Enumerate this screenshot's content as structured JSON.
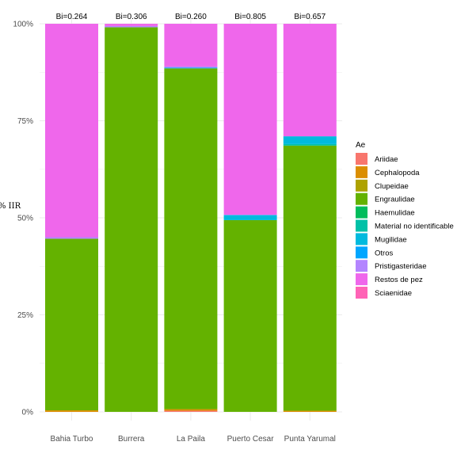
{
  "chart_data": {
    "type": "bar",
    "stacked": true,
    "ylabel": "% IIR",
    "xlabel": "",
    "ylim": [
      0,
      100
    ],
    "y_ticks": [
      "0%",
      "25%",
      "50%",
      "75%",
      "100%"
    ],
    "grid": true,
    "legend_position": "right",
    "legend_title": "Ae",
    "categories": [
      "Bahia Turbo",
      "Burrera",
      "La Paila",
      "Puerto Cesar",
      "Punta Yarumal"
    ],
    "bar_labels": [
      "Bi=0.264",
      "Bi=0.306",
      "Bi=0.260",
      "Bi=0.805",
      "Bi=0.657"
    ],
    "series": [
      {
        "name": "Ariidae",
        "color": "#F8766D",
        "values": [
          0.0,
          0.0,
          0.3,
          0.0,
          0.0
        ]
      },
      {
        "name": "Cephalopoda",
        "color": "#DB8E00",
        "values": [
          0.4,
          0.0,
          0.4,
          0.0,
          0.3
        ]
      },
      {
        "name": "Clupeidae",
        "color": "#AEA200",
        "values": [
          0.0,
          0.0,
          0.0,
          0.0,
          0.0
        ]
      },
      {
        "name": "Engraulidae",
        "color": "#64B200",
        "values": [
          44.2,
          99.1,
          87.8,
          49.4,
          68.3
        ]
      },
      {
        "name": "Haemulidae",
        "color": "#00BD5C",
        "values": [
          0.0,
          0.0,
          0.0,
          0.0,
          0.0
        ]
      },
      {
        "name": "Material no identificable",
        "color": "#00C1A7",
        "values": [
          0.0,
          0.0,
          0.0,
          0.0,
          0.4
        ]
      },
      {
        "name": "Mugilidae",
        "color": "#00BADE",
        "values": [
          0.0,
          0.0,
          0.0,
          1.3,
          2.0
        ]
      },
      {
        "name": "Otros",
        "color": "#00A6FF",
        "values": [
          0.0,
          0.0,
          0.2,
          0.0,
          0.0
        ]
      },
      {
        "name": "Pristigasteridae",
        "color": "#B385FF",
        "values": [
          0.4,
          0.3,
          0.3,
          0.1,
          0.0
        ]
      },
      {
        "name": "Restos de pez",
        "color": "#EF67EB",
        "values": [
          55.0,
          0.6,
          11.0,
          49.2,
          29.0
        ]
      },
      {
        "name": "Sciaenidae",
        "color": "#FF63B6",
        "values": [
          0.0,
          0.0,
          0.0,
          0.0,
          0.0
        ]
      }
    ]
  }
}
